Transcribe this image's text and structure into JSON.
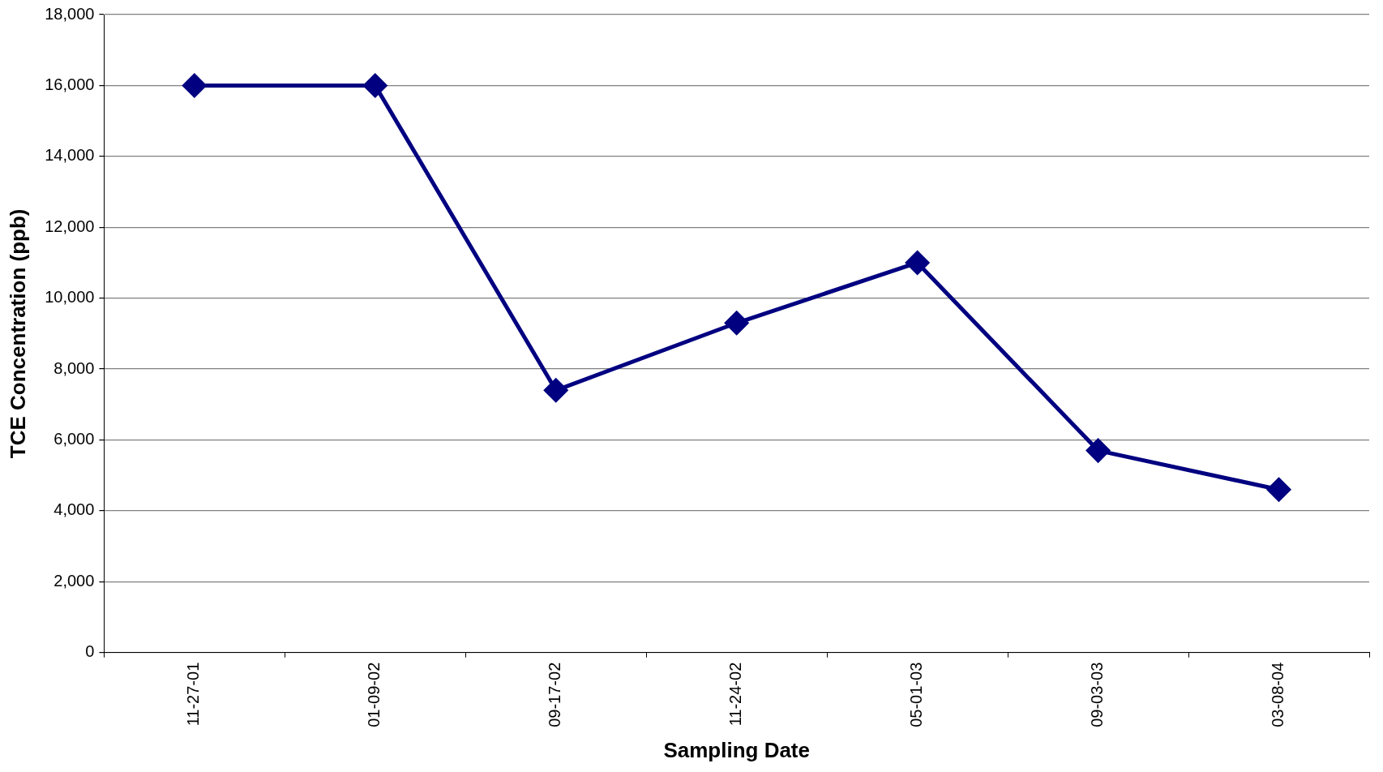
{
  "chart_data": {
    "type": "line",
    "xlabel": "Sampling Date",
    "ylabel": "TCE Concentration (ppb)",
    "categories": [
      "11-27-01",
      "01-09-02",
      "09-17-02",
      "11-24-02",
      "05-01-03",
      "09-03-03",
      "03-08-04"
    ],
    "series": [
      {
        "color": "#000080",
        "values": [
          16000,
          16000,
          7400,
          9300,
          11000,
          5700,
          4600
        ]
      }
    ],
    "ylim": [
      0,
      18000
    ],
    "yticks": [
      0,
      {
        "value": 2000,
        "label": "2,000"
      },
      {
        "value": 4000,
        "label": "4,000"
      },
      {
        "value": 6000,
        "label": "6,000"
      },
      {
        "value": 8000,
        "label": "8,000"
      },
      {
        "value": 10000,
        "label": "10,000"
      },
      {
        "value": 12000,
        "label": "12,000"
      },
      {
        "value": 14000,
        "label": "14,000"
      },
      {
        "value": 16000,
        "label": "16,000"
      },
      {
        "value": 18000,
        "label": "18,000"
      }
    ],
    "grid": "y",
    "legend": false,
    "marker": "diamond",
    "line_style": "solid"
  }
}
